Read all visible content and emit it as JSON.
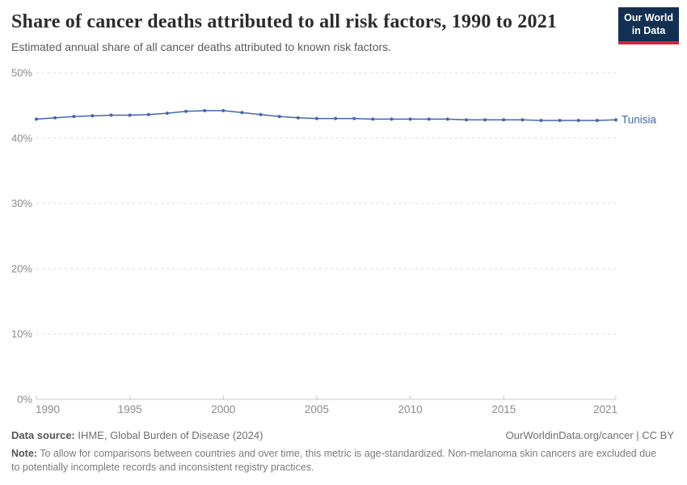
{
  "header": {
    "title": "Share of cancer deaths attributed to all risk factors, 1990 to 2021",
    "subtitle": "Estimated annual share of all cancer deaths attributed to known risk factors."
  },
  "logo": {
    "line1": "Our World",
    "line2": "in Data"
  },
  "chart_data": {
    "type": "line",
    "title": "Share of cancer deaths attributed to all risk factors, 1990 to 2021",
    "x": [
      1990,
      1991,
      1992,
      1993,
      1994,
      1995,
      1996,
      1997,
      1998,
      1999,
      2000,
      2001,
      2002,
      2003,
      2004,
      2005,
      2006,
      2007,
      2008,
      2009,
      2010,
      2011,
      2012,
      2013,
      2014,
      2015,
      2016,
      2017,
      2018,
      2019,
      2020,
      2021
    ],
    "series": [
      {
        "name": "Tunisia",
        "values": [
          42.9,
          43.1,
          43.3,
          43.4,
          43.5,
          43.5,
          43.6,
          43.8,
          44.1,
          44.2,
          44.2,
          43.9,
          43.6,
          43.3,
          43.1,
          43.0,
          43.0,
          43.0,
          42.9,
          42.9,
          42.9,
          42.9,
          42.9,
          42.8,
          42.8,
          42.8,
          42.8,
          42.7,
          42.7,
          42.7,
          42.7,
          42.8
        ],
        "unit": "%"
      }
    ],
    "xlabel": "",
    "ylabel": "",
    "ylim": [
      0,
      50
    ],
    "yticks": [
      0,
      10,
      20,
      30,
      40,
      50
    ],
    "ytick_suffix": "%",
    "xticks": [
      1990,
      1995,
      2000,
      2005,
      2010,
      2015,
      2021
    ],
    "grid": "horizontal-dashed",
    "legend": "end-of-line-label",
    "colors": {
      "line": "#4467a8",
      "grid": "#dcdcdc",
      "axis": "#c8c8c8",
      "tick_label": "#8b8b8d"
    }
  },
  "footer": {
    "datasource_label": "Data source:",
    "datasource_text": "IHME, Global Burden of Disease (2024)",
    "license": "OurWorldinData.org/cancer | CC BY",
    "note_label": "Note:",
    "note_text": "To allow for comparisons between countries and over time, this metric is age-standardized. Non-melanoma skin cancers are excluded due to potentially incomplete records and inconsistent registry practices."
  },
  "colors": {
    "logo_background": "#132f52",
    "logo_red_bar": "#d2263b",
    "title_text": "#2b2b2b",
    "subtitle_text": "#5b5b5b",
    "footer_text": "#707070"
  }
}
